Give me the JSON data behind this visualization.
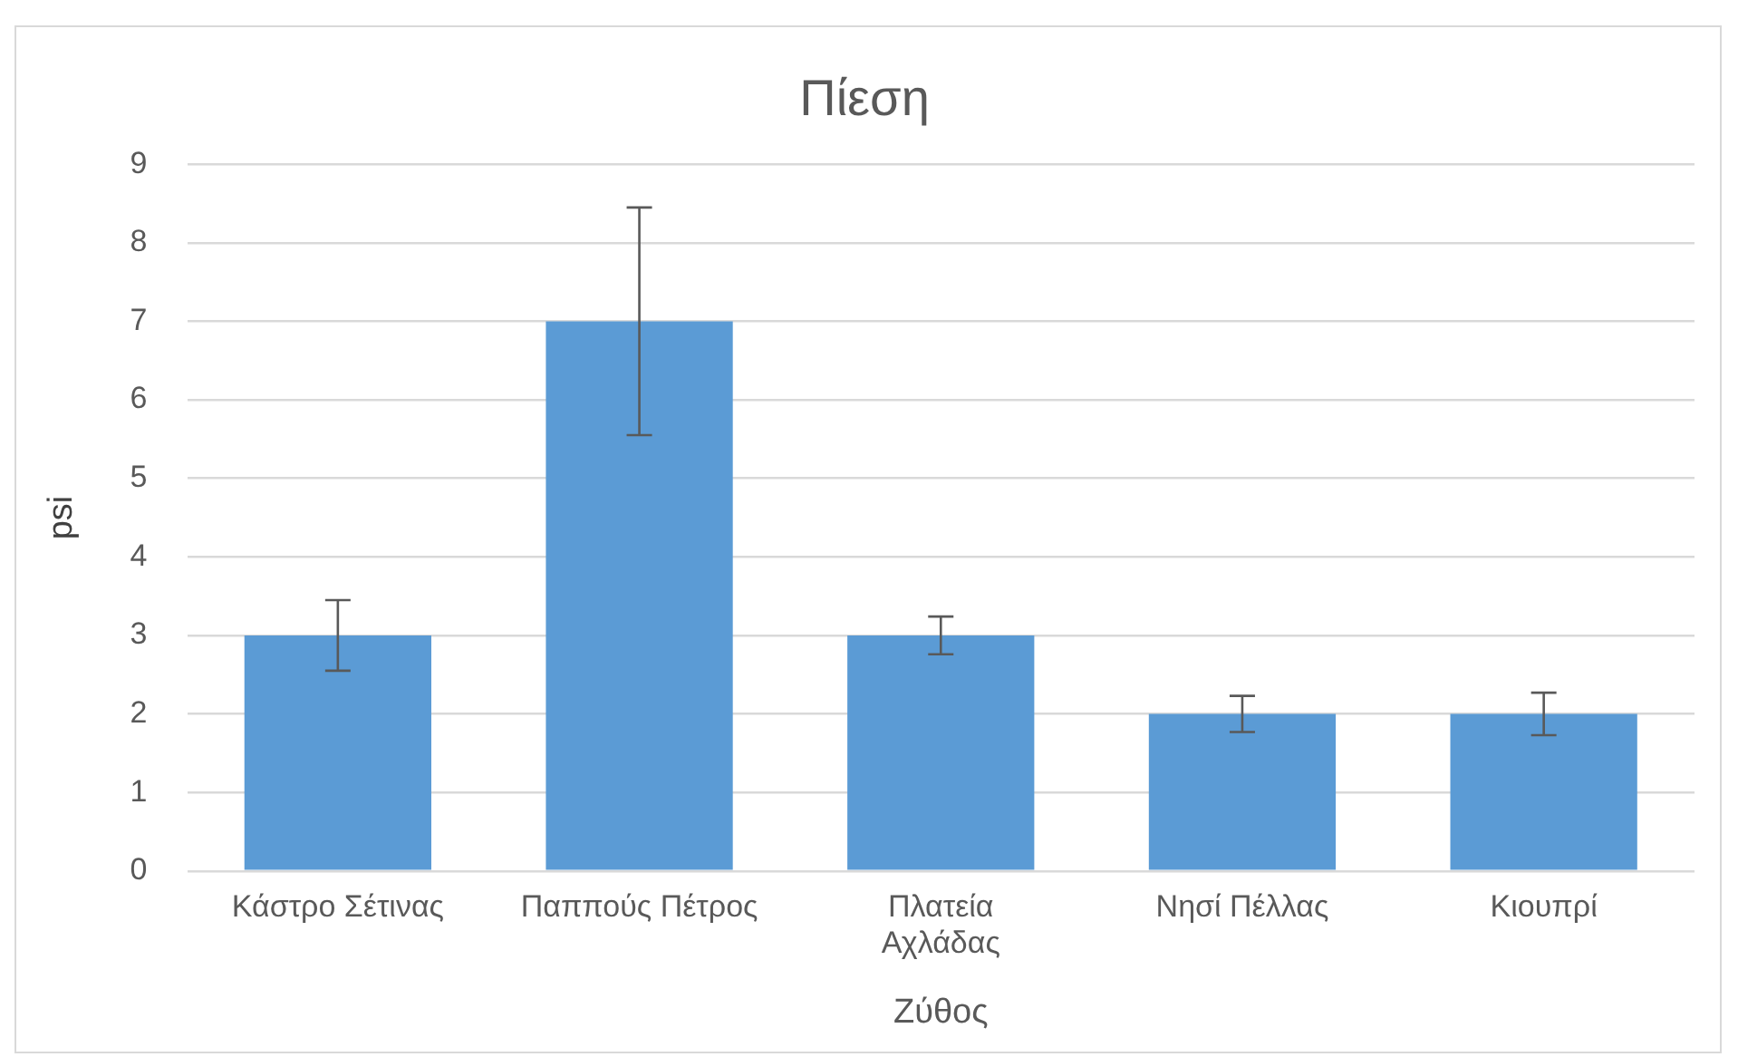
{
  "chart_data": {
    "type": "bar",
    "title": "Πίεση",
    "xlabel": "Ζύθος",
    "ylabel": "psi",
    "categories": [
      "Κάστρο Σέτινας",
      "Παππούς Πέτρος",
      "Πλατεία Αχλάδας",
      "Νησί Πέλλας",
      "Κιουπρί"
    ],
    "values": [
      3,
      7,
      3,
      2,
      2
    ],
    "errors": [
      0.45,
      1.45,
      0.24,
      0.23,
      0.27
    ],
    "color": "#5b9bd5",
    "ylim": [
      0,
      9
    ],
    "yticks": [
      0,
      1,
      2,
      3,
      4,
      5,
      6,
      7,
      8,
      9
    ],
    "grid": "y",
    "legend": false
  }
}
